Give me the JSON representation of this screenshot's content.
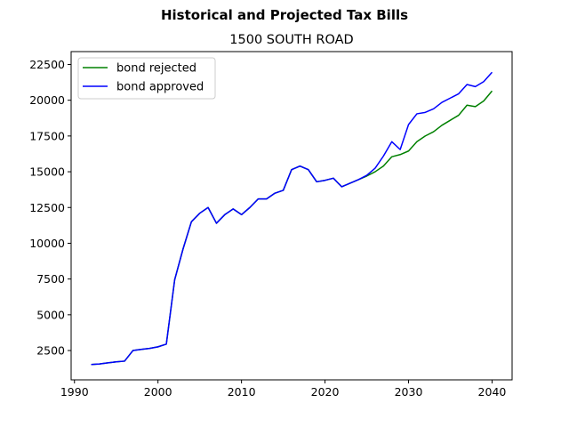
{
  "chart_data": {
    "type": "line",
    "suptitle": "Historical and Projected Tax Bills",
    "title": "1500 SOUTH ROAD",
    "xlabel": "",
    "ylabel": "",
    "xlim": [
      1989.6,
      2042.4
    ],
    "ylim": [
      450,
      23400
    ],
    "xticks": [
      1990,
      2000,
      2010,
      2020,
      2030,
      2040
    ],
    "yticks": [
      2500,
      5000,
      7500,
      10000,
      12500,
      15000,
      17500,
      20000,
      22500
    ],
    "xtick_labels": [
      "1990",
      "2000",
      "2010",
      "2020",
      "2030",
      "2040"
    ],
    "ytick_labels": [
      "2500",
      "5000",
      "7500",
      "10000",
      "12500",
      "15000",
      "17500",
      "20000",
      "22500"
    ],
    "grid": false,
    "legend_position": "upper-left",
    "legend": [
      {
        "name": "bond rejected",
        "color": "#008000"
      },
      {
        "name": "bond approved",
        "color": "#0000ff"
      }
    ],
    "x": [
      1992,
      1993,
      1994,
      1995,
      1996,
      1997,
      1998,
      1999,
      2000,
      2001,
      2002,
      2003,
      2004,
      2005,
      2006,
      2007,
      2008,
      2009,
      2010,
      2011,
      2012,
      2013,
      2014,
      2015,
      2016,
      2017,
      2018,
      2019,
      2020,
      2021,
      2022,
      2023,
      2024,
      2025,
      2026,
      2027,
      2028,
      2029,
      2030,
      2031,
      2032,
      2033,
      2034,
      2035,
      2036,
      2037,
      2038,
      2039,
      2040
    ],
    "series": [
      {
        "name": "bond rejected",
        "color": "#008000",
        "values": [
          1520,
          1560,
          1640,
          1710,
          1760,
          2500,
          2580,
          2650,
          2760,
          2950,
          7450,
          9600,
          11500,
          12100,
          12500,
          11400,
          12000,
          12400,
          12000,
          12500,
          13100,
          13100,
          13500,
          13700,
          15150,
          15400,
          15150,
          14300,
          14400,
          14550,
          13950,
          14200,
          14450,
          14700,
          15000,
          15400,
          16050,
          16200,
          16450,
          17100,
          17500,
          17800,
          18250,
          18600,
          18950,
          19650,
          19550,
          19950,
          20650
        ]
      },
      {
        "name": "bond approved",
        "color": "#0000ff",
        "values": [
          1520,
          1560,
          1640,
          1710,
          1760,
          2500,
          2580,
          2650,
          2760,
          2950,
          7450,
          9600,
          11500,
          12100,
          12500,
          11400,
          12000,
          12400,
          12000,
          12500,
          13100,
          13100,
          13500,
          13700,
          15150,
          15400,
          15150,
          14300,
          14400,
          14550,
          13950,
          14200,
          14450,
          14750,
          15250,
          16100,
          17100,
          16550,
          18300,
          19050,
          19150,
          19400,
          19850,
          20150,
          20450,
          21100,
          20950,
          21300,
          21950
        ]
      }
    ]
  }
}
